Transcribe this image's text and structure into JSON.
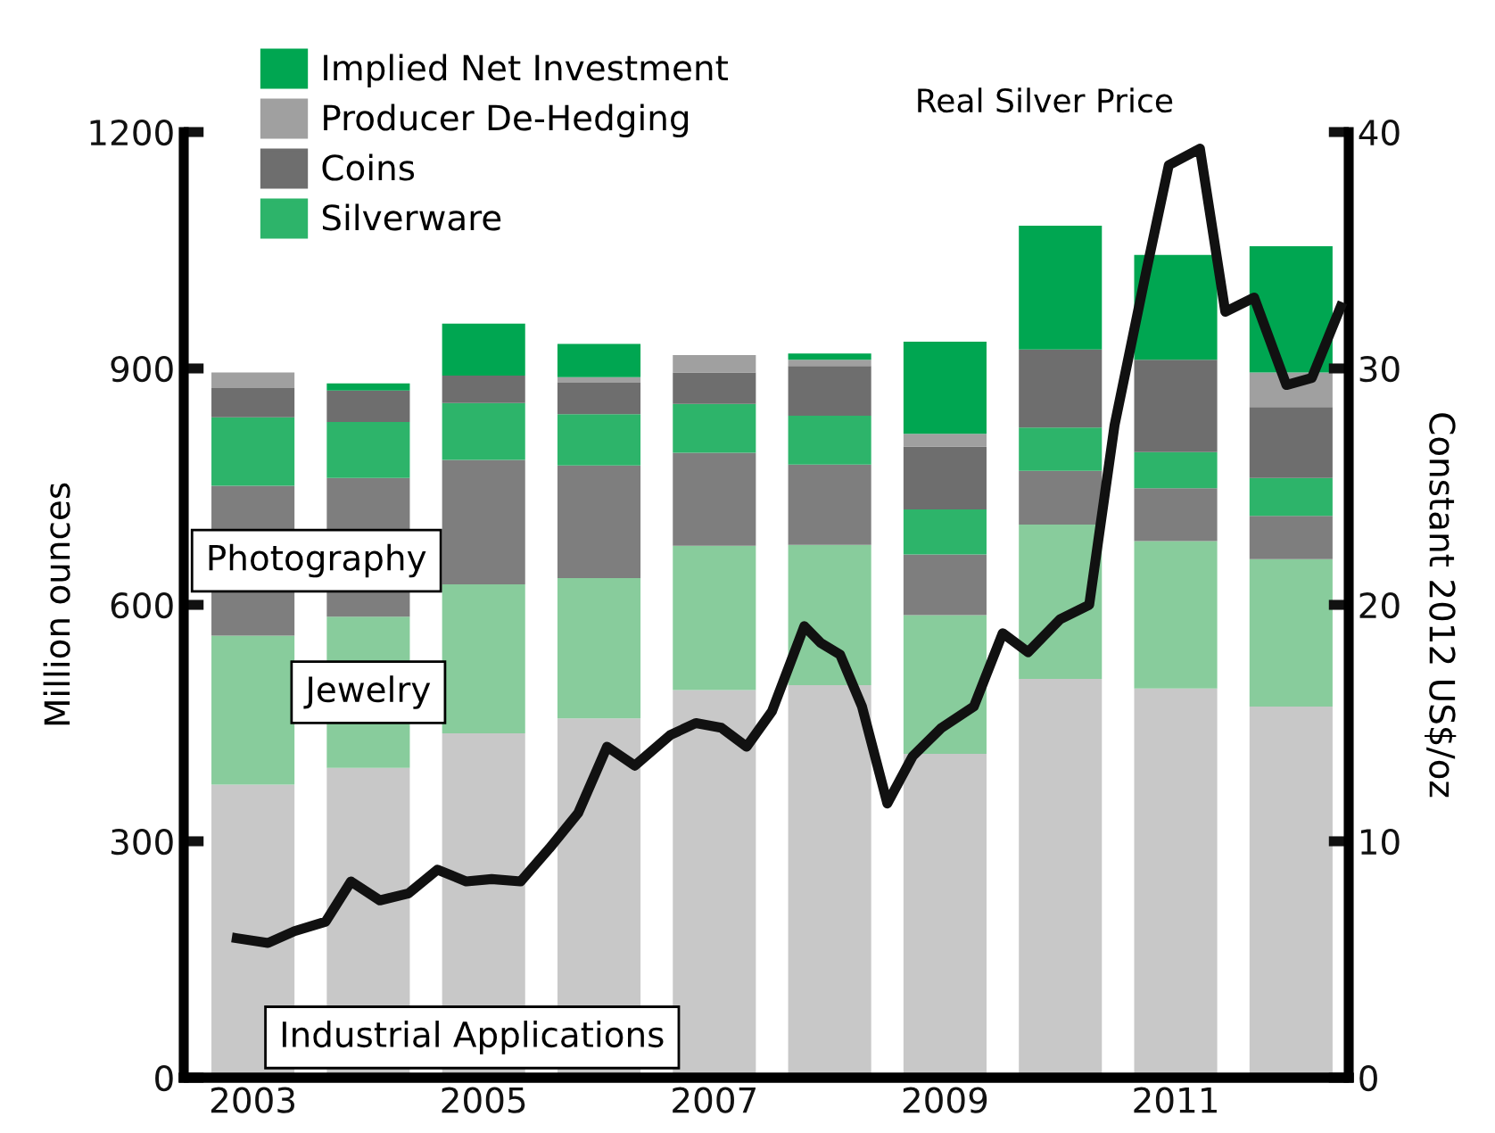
{
  "chart_data": {
    "type": "bar",
    "stacked": true,
    "x": [
      2003,
      2004,
      2005,
      2006,
      2007,
      2008,
      2009,
      2010,
      2011,
      2012
    ],
    "ylabel": "Million ounces",
    "y2label": "Constant 2012 US$/oz",
    "xlim": [
      2002.4,
      2012.5
    ],
    "xticks": [
      2003,
      2005,
      2007,
      2009,
      2011
    ],
    "ylim": [
      0,
      1200
    ],
    "yticks": [
      0,
      300,
      600,
      900,
      1200
    ],
    "y2lim": [
      0,
      40
    ],
    "y2ticks": [
      0,
      10,
      20,
      30,
      40
    ],
    "legend": "top left",
    "grid": false,
    "series": [
      {
        "name": "Industrial Applications",
        "color": "#c8c8c8",
        "values": [
          372,
          393,
          437,
          456,
          492,
          498,
          411,
          506,
          494,
          471
        ]
      },
      {
        "name": "Jewelry",
        "color": "#88cc9c",
        "values": [
          189,
          192,
          189,
          178,
          183,
          178,
          176,
          196,
          187,
          187
        ]
      },
      {
        "name": "Photography",
        "color": "#7e7e7e",
        "values": [
          190,
          176,
          158,
          143,
          118,
          102,
          77,
          68,
          67,
          55
        ]
      },
      {
        "name": "Silverware",
        "color": "#2db46a",
        "values": [
          87,
          71,
          72,
          65,
          62,
          62,
          57,
          55,
          46,
          48
        ]
      },
      {
        "name": "Coins",
        "color": "#6e6e6e",
        "values": [
          37,
          40,
          35,
          40,
          40,
          63,
          80,
          99,
          117,
          90
        ]
      },
      {
        "name": "Producer De-Hedging",
        "color": "#a0a0a0",
        "values": [
          20,
          0,
          0,
          7,
          22,
          8,
          16,
          0,
          0,
          44
        ]
      },
      {
        "name": "Implied Net Investment",
        "color": "#00a651",
        "values": [
          0,
          9,
          66,
          42,
          0,
          8,
          117,
          157,
          133,
          160
        ]
      },
      {
        "name": "Real Silver Price",
        "type": "line",
        "axis": "y2",
        "color": "#111111",
        "x": [
          2002.86,
          2003.13,
          2003.36,
          2003.63,
          2003.85,
          2004.1,
          2004.35,
          2004.6,
          2004.85,
          2005.07,
          2005.32,
          2005.57,
          2005.82,
          2006.07,
          2006.31,
          2006.62,
          2006.84,
          2007.06,
          2007.28,
          2007.5,
          2007.78,
          2007.92,
          2008.09,
          2008.28,
          2008.5,
          2008.72,
          2008.97,
          2009.25,
          2009.5,
          2009.72,
          2010.0,
          2010.25,
          2010.47,
          2010.74,
          2010.94,
          2011.21,
          2011.43,
          2011.68,
          2011.96,
          2012.18,
          2012.43
        ],
        "values": [
          5.9,
          5.7,
          6.2,
          6.6,
          8.3,
          7.5,
          7.8,
          8.8,
          8.3,
          8.4,
          8.3,
          9.7,
          11.2,
          14.0,
          13.2,
          14.5,
          15.0,
          14.8,
          14.0,
          15.5,
          19.1,
          18.4,
          17.9,
          15.7,
          11.6,
          13.6,
          14.8,
          15.7,
          18.8,
          18.0,
          19.4,
          20.0,
          27.6,
          34.0,
          38.6,
          39.3,
          32.4,
          33.0,
          29.3,
          29.6,
          32.6
        ]
      }
    ]
  }
}
